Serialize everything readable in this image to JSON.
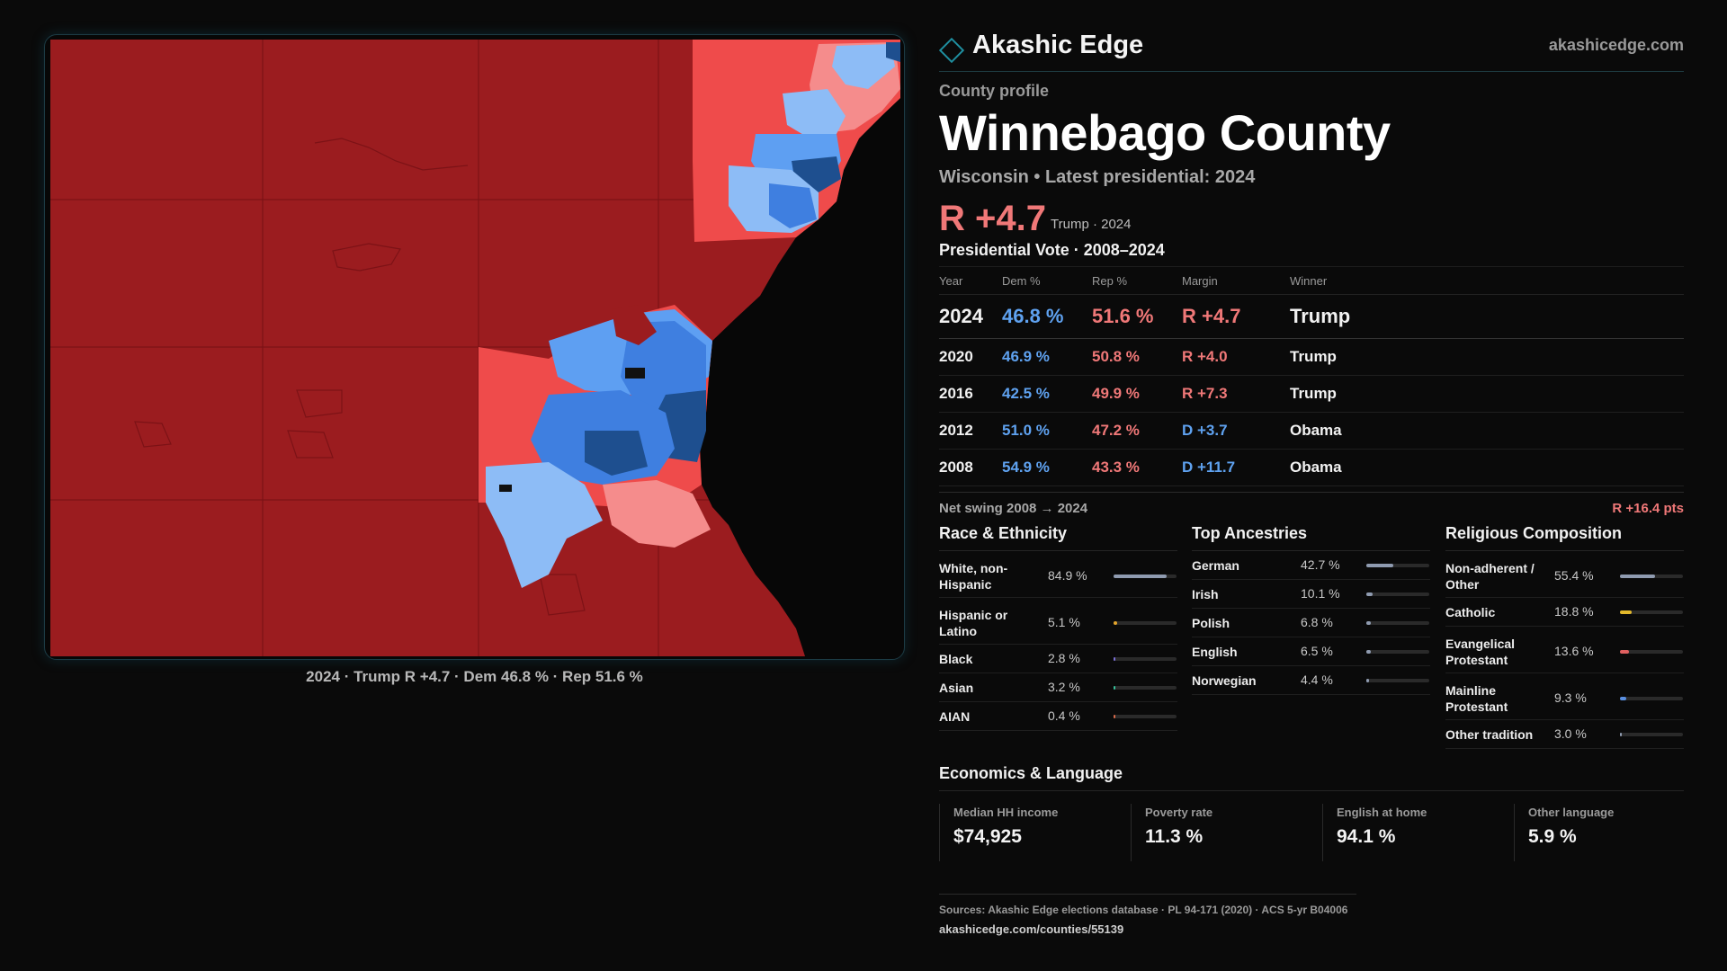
{
  "brand": {
    "name": "Akashic Edge",
    "url": "akashicedge.com"
  },
  "county": {
    "eyebrow": "County profile",
    "name": "Winnebago County",
    "subtitle": "Wisconsin • Latest presidential: 2024",
    "margin_big": "R +4.7",
    "margin_sub": "Trump · 2024"
  },
  "map": {
    "caption": "2024 · Trump R +4.7 · Dem 46.8 % · Rep 51.6 %",
    "legend_colors": {
      "strong_r": "#9b1c1f",
      "lean_r": "#ef4b4b",
      "slight_r": "#f58c8c",
      "slight_d": "#8dbcf6",
      "lean_d": "#5e9ff2",
      "d": "#3f7fe0",
      "strong_d": "#1e4f8f",
      "water": "#070707"
    }
  },
  "presidential": {
    "heading": "Presidential Vote · 2008–2024",
    "columns": [
      "Year",
      "Dem %",
      "Rep %",
      "Margin",
      "Winner"
    ],
    "rows": [
      {
        "year": "2024",
        "dem": "46.8 %",
        "rep": "51.6 %",
        "margin": "R +4.7",
        "party": "rep",
        "winner": "Trump"
      },
      {
        "year": "2020",
        "dem": "46.9 %",
        "rep": "50.8 %",
        "margin": "R +4.0",
        "party": "rep",
        "winner": "Trump"
      },
      {
        "year": "2016",
        "dem": "42.5 %",
        "rep": "49.9 %",
        "margin": "R +7.3",
        "party": "rep",
        "winner": "Trump"
      },
      {
        "year": "2012",
        "dem": "51.0 %",
        "rep": "47.2 %",
        "margin": "D +3.7",
        "party": "dem",
        "winner": "Obama"
      },
      {
        "year": "2008",
        "dem": "54.9 %",
        "rep": "43.3 %",
        "margin": "D +11.7",
        "party": "dem",
        "winner": "Obama"
      }
    ],
    "swing_label": "Net swing 2008 → 2024",
    "swing_value": "R +16.4 pts"
  },
  "race": {
    "heading": "Race & Ethnicity",
    "rows": [
      {
        "label": "White, non-Hispanic",
        "value": "84.9 %",
        "pct": 84.9,
        "color": "#8f9bb0",
        "tall": true
      },
      {
        "label": "Hispanic or Latino",
        "value": "5.1 %",
        "pct": 5.1,
        "color": "#e3a42b",
        "tall": true
      },
      {
        "label": "Black",
        "value": "2.8 %",
        "pct": 2.8,
        "color": "#7a6fd6",
        "tall": false
      },
      {
        "label": "Asian",
        "value": "3.2 %",
        "pct": 3.2,
        "color": "#36c19a",
        "tall": false
      },
      {
        "label": "AIAN",
        "value": "0.4 %",
        "pct": 0.4,
        "color": "#d86a4a",
        "tall": false
      }
    ]
  },
  "ancestry": {
    "heading": "Top Ancestries",
    "rows": [
      {
        "label": "German",
        "value": "42.7 %",
        "pct": 42.7,
        "color": "#8f9bb0"
      },
      {
        "label": "Irish",
        "value": "10.1 %",
        "pct": 10.1,
        "color": "#8f9bb0"
      },
      {
        "label": "Polish",
        "value": "6.8 %",
        "pct": 6.8,
        "color": "#8f9bb0"
      },
      {
        "label": "English",
        "value": "6.5 %",
        "pct": 6.5,
        "color": "#8f9bb0"
      },
      {
        "label": "Norwegian",
        "value": "4.4 %",
        "pct": 4.4,
        "color": "#8f9bb0"
      }
    ]
  },
  "religion": {
    "heading": "Religious Composition",
    "rows": [
      {
        "label": "Non-adherent / Other",
        "value": "55.4 %",
        "pct": 55.4,
        "color": "#8f9bb0",
        "tall": true
      },
      {
        "label": "Catholic",
        "value": "18.8 %",
        "pct": 18.8,
        "color": "#e3b92b",
        "tall": false
      },
      {
        "label": "Evangelical Protestant",
        "value": "13.6 %",
        "pct": 13.6,
        "color": "#e06060",
        "tall": true
      },
      {
        "label": "Mainline Protestant",
        "value": "9.3 %",
        "pct": 9.3,
        "color": "#5a8fe0",
        "tall": true
      },
      {
        "label": "Other tradition",
        "value": "3.0 %",
        "pct": 3.0,
        "color": "#8f9bb0",
        "tall": false
      }
    ]
  },
  "economics": {
    "heading": "Economics & Language",
    "items": [
      {
        "label": "Median HH income",
        "value": "$74,925"
      },
      {
        "label": "Poverty rate",
        "value": "11.3 %"
      },
      {
        "label": "English at home",
        "value": "94.1 %"
      },
      {
        "label": "Other language",
        "value": "5.9 %"
      }
    ]
  },
  "sources": {
    "line1": "Sources: Akashic Edge elections database · PL 94-171 (2020) · ACS 5-yr B04006",
    "line2": "akashicedge.com/counties/55139"
  }
}
